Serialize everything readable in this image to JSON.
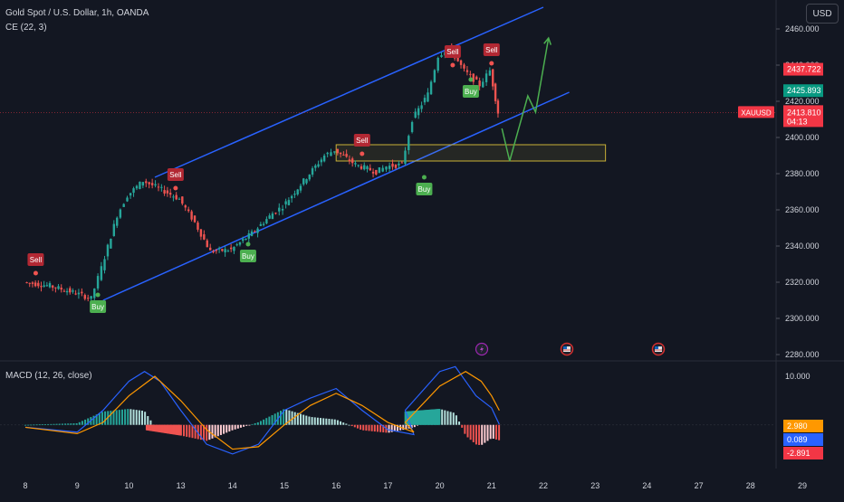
{
  "header": {
    "title": "Gold Spot / U.S. Dollar, 1h, OANDA",
    "indicator": "CE (22, 3)",
    "currency": "USD"
  },
  "colors": {
    "background": "#131722",
    "up": "#26a69a",
    "down": "#ef5350",
    "channel": "#2962ff",
    "projection": "#4caf50",
    "macd_line": "#2962ff",
    "signal_line": "#ff9800"
  },
  "icons": [
    "lightning-event-icon",
    "us-flag-event-icon",
    "us-flag-event-icon"
  ],
  "chart_data": [
    {
      "type": "candlestick",
      "title": "Gold Spot / U.S. Dollar, 1h, OANDA",
      "symbol": "XAUUSD",
      "y_axis": {
        "ticks": [
          "2460.000",
          "2440.000",
          "2420.000",
          "2400.000",
          "2380.000",
          "2360.000",
          "2340.000",
          "2320.000",
          "2300.000",
          "2280.000"
        ],
        "range": [
          2277,
          2476
        ]
      },
      "x_axis": {
        "ticks": [
          "8",
          "9",
          "10",
          "13",
          "14",
          "15",
          "16",
          "17",
          "20",
          "21",
          "22",
          "23",
          "24",
          "27",
          "28",
          "29"
        ]
      },
      "price_labels": [
        {
          "name": "chandelier-sell",
          "text": "2437.722",
          "value": 2437.722,
          "color": "#f23645"
        },
        {
          "name": "chandelier-buy",
          "text": "2425.893",
          "value": 2425.893,
          "color": "#089981"
        },
        {
          "name": "last-price",
          "text": "2413.810",
          "value": 2413.81,
          "color": "#f23645",
          "countdown": "04:13",
          "symbol": "XAUUSD"
        }
      ],
      "ohlc_points": [
        {
          "x": 8.0,
          "y": 2320
        },
        {
          "x": 8.5,
          "y": 2318
        },
        {
          "x": 9.0,
          "y": 2314
        },
        {
          "x": 9.3,
          "y": 2311
        },
        {
          "x": 9.5,
          "y": 2328
        },
        {
          "x": 9.8,
          "y": 2357
        },
        {
          "x": 10.0,
          "y": 2368
        },
        {
          "x": 10.3,
          "y": 2376
        },
        {
          "x": 10.6,
          "y": 2372
        },
        {
          "x": 13.0,
          "y": 2366
        },
        {
          "x": 13.3,
          "y": 2353
        },
        {
          "x": 13.6,
          "y": 2337
        },
        {
          "x": 14.0,
          "y": 2338
        },
        {
          "x": 14.4,
          "y": 2347
        },
        {
          "x": 14.8,
          "y": 2358
        },
        {
          "x": 15.0,
          "y": 2362
        },
        {
          "x": 15.4,
          "y": 2376
        },
        {
          "x": 15.8,
          "y": 2390
        },
        {
          "x": 16.0,
          "y": 2393
        },
        {
          "x": 16.4,
          "y": 2385
        },
        {
          "x": 16.8,
          "y": 2381
        },
        {
          "x": 17.0,
          "y": 2384
        },
        {
          "x": 17.3,
          "y": 2385
        },
        {
          "x": 17.5,
          "y": 2410
        },
        {
          "x": 17.8,
          "y": 2424
        },
        {
          "x": 20.0,
          "y": 2445
        },
        {
          "x": 20.2,
          "y": 2450
        },
        {
          "x": 20.5,
          "y": 2437
        },
        {
          "x": 20.8,
          "y": 2429
        },
        {
          "x": 21.0,
          "y": 2437
        },
        {
          "x": 21.15,
          "y": 2413.81
        }
      ],
      "chandelier_exit": [
        {
          "label": "Sell",
          "x": 8.2,
          "value": 2325
        },
        {
          "label": "Buy",
          "x": 9.4,
          "value": 2313
        },
        {
          "label": "Sell",
          "x": 10.9,
          "value": 2372
        },
        {
          "label": "Buy",
          "x": 14.3,
          "value": 2341
        },
        {
          "label": "Sell",
          "x": 16.5,
          "value": 2391
        },
        {
          "label": "Buy",
          "x": 17.7,
          "value": 2378
        },
        {
          "label": "Sell",
          "x": 20.25,
          "value": 2440
        },
        {
          "label": "Buy",
          "x": 20.6,
          "value": 2432
        },
        {
          "label": "Sell",
          "x": 21.0,
          "value": 2441
        }
      ],
      "annotations": {
        "channel_upper": [
          {
            "x": 10.5,
            "y": 2378
          },
          {
            "x": 22.0,
            "y": 2472
          }
        ],
        "channel_lower": [
          {
            "x": 9.5,
            "y": 2310
          },
          {
            "x": 22.5,
            "y": 2425
          }
        ],
        "support_zone": {
          "x_from": 16.0,
          "x_to": 23.2,
          "y_from": 2387,
          "y_to": 2396
        },
        "current_price_line": 2413.81,
        "projection_path": [
          {
            "x": 21.2,
            "y": 2405
          },
          {
            "x": 21.35,
            "y": 2387
          },
          {
            "x": 21.7,
            "y": 2423
          },
          {
            "x": 21.85,
            "y": 2414
          },
          {
            "x": 22.1,
            "y": 2455
          }
        ]
      }
    },
    {
      "type": "bar",
      "title": "MACD (12, 26, close)",
      "y_axis": {
        "ticks": [
          "10.000"
        ],
        "range": [
          -9,
          13
        ]
      },
      "value_labels": [
        {
          "name": "signal-value",
          "text": "2.980",
          "value": 2.98,
          "color": "#ff9800"
        },
        {
          "name": "macd-value",
          "text": "0.089",
          "value": 0.089,
          "color": "#2962ff"
        },
        {
          "name": "histogram-value",
          "text": "-2.891",
          "value": -2.891,
          "color": "#f23645"
        }
      ],
      "macd_points": [
        {
          "x": 8.0,
          "y": -0.5
        },
        {
          "x": 9.0,
          "y": -1.5
        },
        {
          "x": 9.5,
          "y": 3
        },
        {
          "x": 10.0,
          "y": 9
        },
        {
          "x": 10.3,
          "y": 11
        },
        {
          "x": 10.6,
          "y": 9
        },
        {
          "x": 13.0,
          "y": 3
        },
        {
          "x": 13.5,
          "y": -4
        },
        {
          "x": 14.0,
          "y": -6
        },
        {
          "x": 14.5,
          "y": -4
        },
        {
          "x": 15.0,
          "y": 3
        },
        {
          "x": 15.5,
          "y": 5.5
        },
        {
          "x": 16.0,
          "y": 7.5
        },
        {
          "x": 16.5,
          "y": 3
        },
        {
          "x": 17.0,
          "y": -1
        },
        {
          "x": 17.5,
          "y": -2
        },
        {
          "x": 18.0,
          "y": 3
        },
        {
          "x": 20.0,
          "y": 11
        },
        {
          "x": 20.3,
          "y": 12
        },
        {
          "x": 20.7,
          "y": 6
        },
        {
          "x": 21.0,
          "y": 3.5
        },
        {
          "x": 21.15,
          "y": 0.089
        }
      ],
      "signal_points": [
        {
          "x": 8.0,
          "y": -0.5
        },
        {
          "x": 9.0,
          "y": -1.8
        },
        {
          "x": 9.5,
          "y": 0.5
        },
        {
          "x": 10.0,
          "y": 6
        },
        {
          "x": 10.5,
          "y": 10
        },
        {
          "x": 13.0,
          "y": 5
        },
        {
          "x": 13.5,
          "y": -1
        },
        {
          "x": 14.0,
          "y": -5
        },
        {
          "x": 14.5,
          "y": -4.5
        },
        {
          "x": 15.0,
          "y": 0
        },
        {
          "x": 15.5,
          "y": 4
        },
        {
          "x": 16.0,
          "y": 6.5
        },
        {
          "x": 16.5,
          "y": 4
        },
        {
          "x": 17.0,
          "y": 0.5
        },
        {
          "x": 17.5,
          "y": -1.5
        },
        {
          "x": 18.0,
          "y": 0.5
        },
        {
          "x": 20.0,
          "y": 8
        },
        {
          "x": 20.5,
          "y": 11
        },
        {
          "x": 20.8,
          "y": 9
        },
        {
          "x": 21.0,
          "y": 6
        },
        {
          "x": 21.15,
          "y": 2.98
        }
      ]
    }
  ]
}
